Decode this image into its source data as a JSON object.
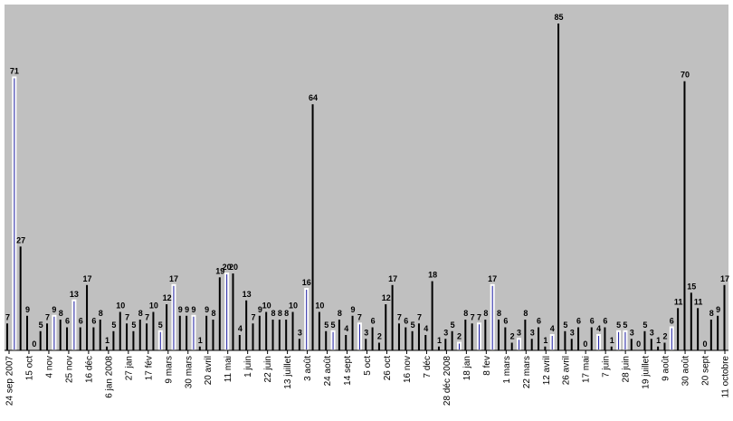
{
  "chart_data": {
    "type": "bar",
    "title": "",
    "xlabel": "",
    "ylabel": "",
    "ylim": [
      0,
      85
    ],
    "grid": false,
    "legend": "none",
    "colors": {
      "plot_background": "#c0c0c0",
      "bar_dark": "#000000",
      "bar_blue": "#1a1aa0",
      "bar_outline": "#ffffff"
    },
    "tick_labels": [
      "24 sep 2007",
      "15 oct",
      "4 nov",
      "25 nov",
      "16 déc",
      "6 jan 2008",
      "27 jan",
      "17 fév",
      "9 mars",
      "30 mars",
      "20 avril",
      "11 mai",
      "1 juin",
      "22 juin",
      "13 juillet",
      "3 août",
      "24 août",
      "14 sept",
      "5 oct",
      "26 oct",
      "16 nov",
      "7 déc",
      "28 déc 2008",
      "18 jan",
      "8 fev",
      "1 mars",
      "22 mars",
      "12 avril",
      "26 avril",
      "17 mai",
      "7 juin",
      "28 juin",
      "19 juillet",
      "9 août",
      "30 août",
      "20 sept",
      "11 octobre"
    ],
    "values": [
      7,
      71,
      27,
      9,
      0,
      5,
      7,
      9,
      8,
      6,
      13,
      6,
      17,
      6,
      8,
      1,
      5,
      10,
      7,
      5,
      8,
      7,
      10,
      5,
      12,
      17,
      9,
      9,
      9,
      1,
      9,
      8,
      19,
      20,
      20,
      4,
      13,
      7,
      9,
      10,
      8,
      8,
      8,
      10,
      3,
      16,
      64,
      10,
      5,
      5,
      8,
      4,
      9,
      7,
      3,
      6,
      2,
      12,
      17,
      7,
      6,
      5,
      7,
      4,
      18,
      1,
      3,
      5,
      2,
      8,
      7,
      7,
      8,
      17,
      8,
      6,
      2,
      3,
      8,
      3,
      6,
      1,
      4,
      85,
      5,
      3,
      6,
      0,
      6,
      4,
      6,
      1,
      5,
      5,
      3,
      0,
      5,
      3,
      1,
      2,
      6,
      11,
      70,
      15,
      11,
      0,
      8,
      9,
      17
    ],
    "blue_indices": [
      1,
      7,
      10,
      23,
      25,
      28,
      33,
      45,
      49,
      53,
      68,
      71,
      73,
      77,
      82,
      89,
      92,
      93,
      100
    ]
  }
}
